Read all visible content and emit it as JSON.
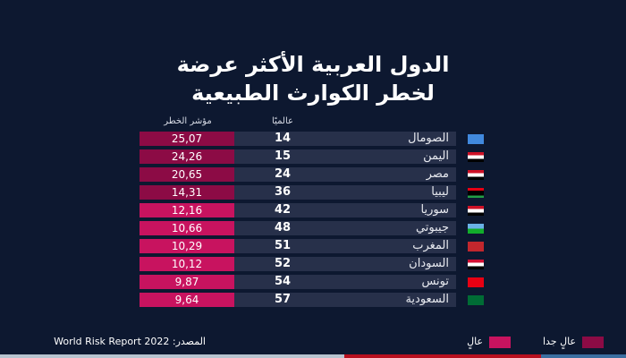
{
  "title_line1": "الدول العربية الأكثر عرضة",
  "title_line2": "لخطر الكوارث الطبيعية",
  "headers": {
    "index": "مؤشر الخطر",
    "rank": "عالميًا"
  },
  "colors": {
    "very_high": "#8c0b45",
    "high": "#c8135f"
  },
  "rows": [
    {
      "name": "الصومال",
      "rank": "14",
      "value": "25,07",
      "level": "very_high",
      "flag": "somalia-flag-icon"
    },
    {
      "name": "اليمن",
      "rank": "15",
      "value": "24,26",
      "level": "very_high",
      "flag": "yemen-flag-icon"
    },
    {
      "name": "مصر",
      "rank": "24",
      "value": "20,65",
      "level": "very_high",
      "flag": "egypt-flag-icon"
    },
    {
      "name": "ليبيا",
      "rank": "36",
      "value": "14,31",
      "level": "very_high",
      "flag": "libya-flag-icon"
    },
    {
      "name": "سوريا",
      "rank": "42",
      "value": "12,16",
      "level": "high",
      "flag": "syria-flag-icon"
    },
    {
      "name": "جيبوتي",
      "rank": "48",
      "value": "10,66",
      "level": "high",
      "flag": "djibouti-flag-icon"
    },
    {
      "name": "المغرب",
      "rank": "51",
      "value": "10,29",
      "level": "high",
      "flag": "morocco-flag-icon"
    },
    {
      "name": "السودان",
      "rank": "52",
      "value": "10,12",
      "level": "high",
      "flag": "sudan-flag-icon"
    },
    {
      "name": "تونس",
      "rank": "54",
      "value": "9,87",
      "level": "high",
      "flag": "tunisia-flag-icon"
    },
    {
      "name": "السعودية",
      "rank": "57",
      "value": "9,64",
      "level": "high",
      "flag": "saudi-flag-icon"
    }
  ],
  "legend": {
    "very_high": "عالٍ جدا",
    "high": "عالٍ"
  },
  "source": "المصدر: World Risk Report 2022"
}
